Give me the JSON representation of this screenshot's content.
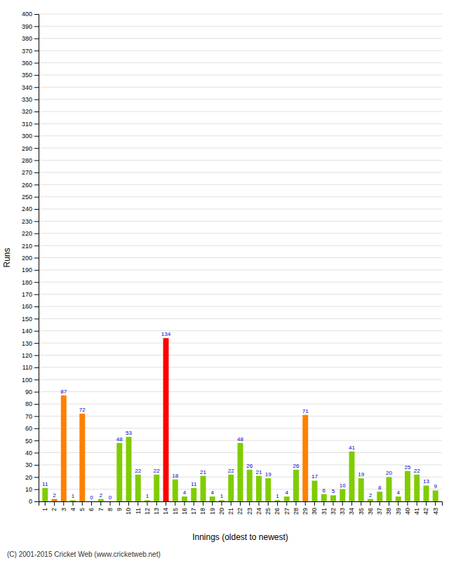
{
  "chart_data": {
    "type": "bar",
    "xlabel": "Innings (oldest to newest)",
    "ylabel": "Runs",
    "annotations": [
      "(C) 2001-2015 Cricket Web (www.cricketweb.net)"
    ],
    "categories": [
      1,
      2,
      3,
      4,
      5,
      6,
      7,
      8,
      9,
      10,
      11,
      12,
      13,
      14,
      15,
      16,
      17,
      18,
      19,
      20,
      21,
      22,
      23,
      24,
      25,
      26,
      27,
      28,
      29,
      30,
      31,
      32,
      33,
      34,
      35,
      36,
      37,
      38,
      39,
      40,
      41,
      42,
      43
    ],
    "values": [
      11,
      2,
      87,
      1,
      72,
      0,
      2,
      0,
      48,
      53,
      22,
      1,
      22,
      134,
      18,
      4,
      11,
      21,
      4,
      1,
      22,
      48,
      26,
      21,
      19,
      1,
      4,
      26,
      71,
      17,
      6,
      5,
      10,
      41,
      19,
      2,
      8,
      20,
      4,
      25,
      22,
      13,
      9
    ],
    "colors": [
      "#80cc00",
      "#ff8000",
      "#ff8000",
      "#80cc00",
      "#ff8000",
      "#80cc00",
      "#80cc00",
      "#80cc00",
      "#80cc00",
      "#80cc00",
      "#80cc00",
      "#80cc00",
      "#80cc00",
      "#ff0000",
      "#80cc00",
      "#80cc00",
      "#80cc00",
      "#80cc00",
      "#80cc00",
      "#80cc00",
      "#80cc00",
      "#80cc00",
      "#80cc00",
      "#80cc00",
      "#80cc00",
      "#80cc00",
      "#80cc00",
      "#80cc00",
      "#ff8000",
      "#80cc00",
      "#80cc00",
      "#80cc00",
      "#80cc00",
      "#80cc00",
      "#80cc00",
      "#80cc00",
      "#80cc00",
      "#80cc00",
      "#80cc00",
      "#80cc00",
      "#80cc00",
      "#80cc00",
      "#80cc00"
    ],
    "ylim": [
      0,
      400
    ],
    "yticks": [
      0,
      10,
      20,
      30,
      40,
      50,
      60,
      70,
      80,
      90,
      100,
      110,
      120,
      130,
      140,
      150,
      160,
      170,
      180,
      190,
      200,
      210,
      220,
      230,
      240,
      250,
      260,
      270,
      280,
      290,
      300,
      310,
      320,
      330,
      340,
      350,
      360,
      370,
      380,
      390,
      400
    ],
    "grid": true,
    "data_labels": true
  }
}
